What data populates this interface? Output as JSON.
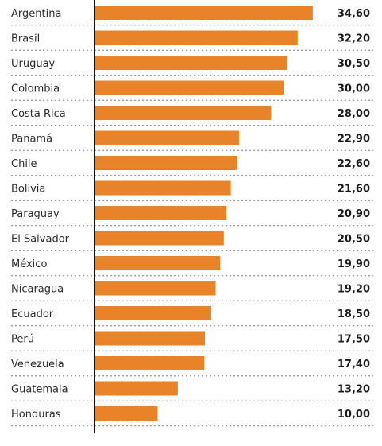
{
  "chart_data": {
    "type": "bar",
    "orientation": "horizontal",
    "categories": [
      "Argentina",
      "Brasil",
      "Uruguay",
      "Colombia",
      "Costa Rica",
      "Panamá",
      "Chile",
      "Bolivia",
      "Paraguay",
      "El Salvador",
      "México",
      "Nicaragua",
      "Ecuador",
      "Perú",
      "Venezuela",
      "Guatemala",
      "Honduras"
    ],
    "values": [
      34.6,
      32.2,
      30.5,
      30.0,
      28.0,
      22.9,
      22.6,
      21.6,
      20.9,
      20.5,
      19.9,
      19.2,
      18.5,
      17.5,
      17.4,
      13.2,
      10.0
    ],
    "value_labels": [
      "34,60",
      "32,20",
      "30,50",
      "30,00",
      "28,00",
      "22,90",
      "22,60",
      "21,60",
      "20,90",
      "20,50",
      "19,90",
      "19,20",
      "18,50",
      "17,50",
      "17,40",
      "13,20",
      "10,00"
    ],
    "xlim": [
      0,
      36
    ],
    "grid": "dashed horizontal separators",
    "legend": "none",
    "colors": {
      "bar": "#E8832A",
      "axis": "#111111",
      "grid": "#7a7a7a",
      "text": "#2a2a2a"
    }
  }
}
